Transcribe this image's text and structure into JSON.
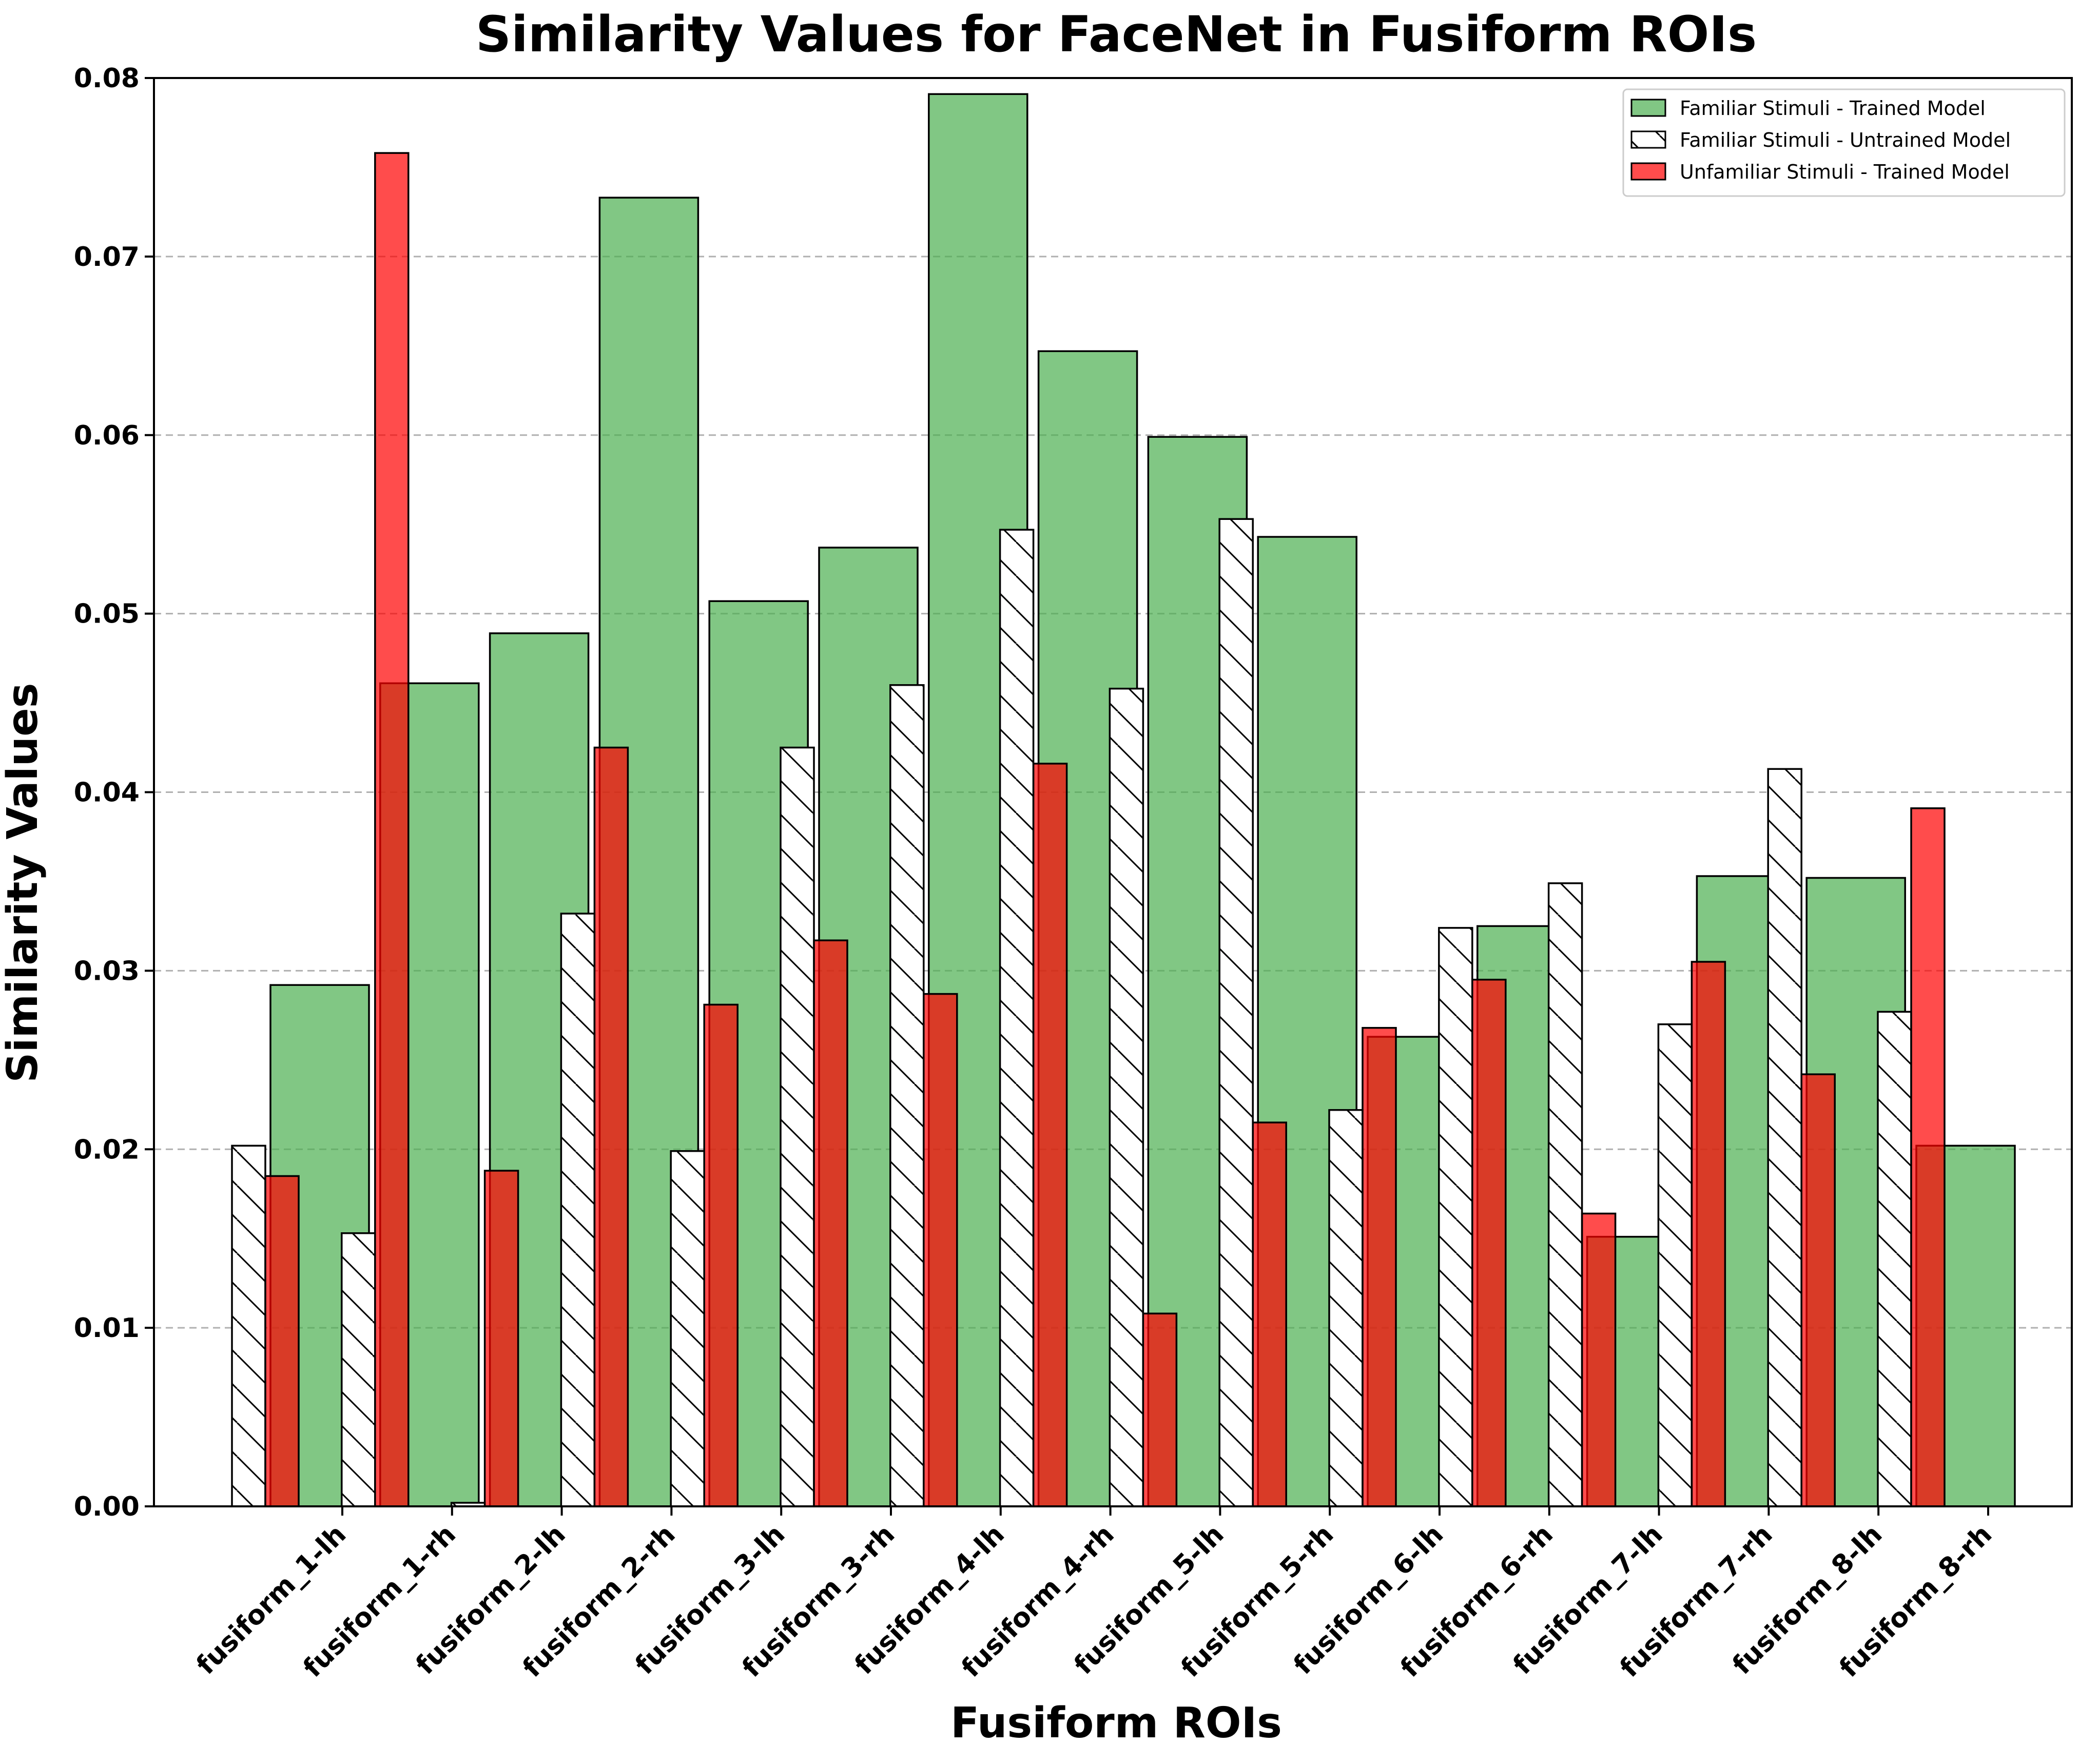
{
  "chart_data": {
    "type": "bar",
    "title": "Similarity Values for FaceNet in Fusiform ROIs",
    "xlabel": "Fusiform ROIs",
    "ylabel": "Similarity Values",
    "ylim": [
      0,
      0.08
    ],
    "yticks": [
      "0.00",
      "0.01",
      "0.02",
      "0.03",
      "0.04",
      "0.05",
      "0.06",
      "0.07",
      "0.08"
    ],
    "grid": "horizontal dashed",
    "legend_position": "top-right",
    "categories": [
      "fusiform_1-lh",
      "fusiform_1-rh",
      "fusiform_2-lh",
      "fusiform_2-rh",
      "fusiform_3-lh",
      "fusiform_3-rh",
      "fusiform_4-lh",
      "fusiform_4-rh",
      "fusiform_5-lh",
      "fusiform_5-rh",
      "fusiform_6-lh",
      "fusiform_6-rh",
      "fusiform_7-lh",
      "fusiform_7-rh",
      "fusiform_8-lh",
      "fusiform_8-rh"
    ],
    "series": [
      {
        "name": "Familiar Stimuli - Trained Model",
        "color": "#4caf50",
        "style": "solid-green-translucent",
        "values": [
          0.0292,
          0.0461,
          0.0489,
          0.0733,
          0.0507,
          0.0537,
          0.0791,
          0.0647,
          0.0599,
          0.0543,
          0.0263,
          0.0325,
          0.0151,
          0.0353,
          0.0352,
          0.0202
        ]
      },
      {
        "name": "Familiar Stimuli - Untrained Model",
        "color": "#ffffff",
        "style": "white-hatched",
        "values": [
          0.0202,
          0.0153,
          0.0002,
          0.0332,
          0.0199,
          0.0425,
          0.046,
          0.0547,
          0.0458,
          0.0553,
          0.0222,
          0.0324,
          0.0349,
          0.027,
          0.0413,
          0.0277
        ]
      },
      {
        "name": "Unfamiliar Stimuli - Trained Model",
        "color": "#ff0000",
        "style": "solid-red-translucent",
        "values": [
          0.0185,
          0.0758,
          0.0188,
          0.0425,
          0.0281,
          0.0317,
          0.0287,
          0.0416,
          0.0108,
          0.0215,
          0.0268,
          0.0295,
          0.0164,
          0.0305,
          0.0242,
          0.0391
        ]
      }
    ]
  }
}
